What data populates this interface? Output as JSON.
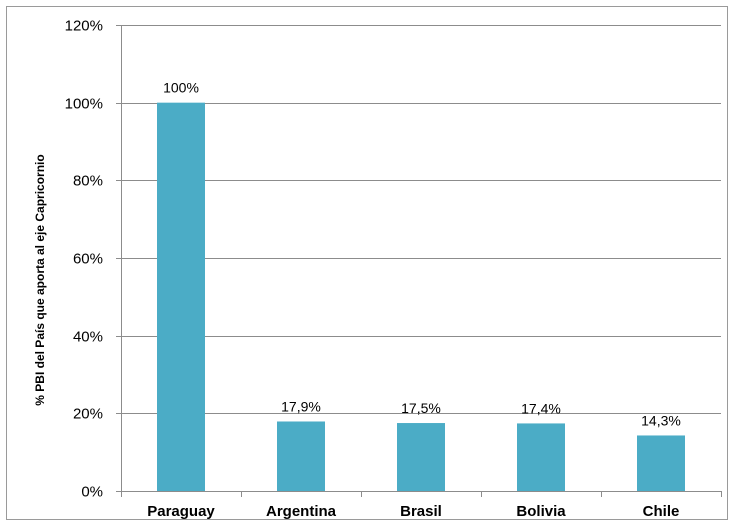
{
  "chart_data": {
    "type": "bar",
    "title": "",
    "xlabel": "",
    "ylabel": "% PBI del País que aporta al eje Capricornio",
    "categories": [
      "Paraguay",
      "Argentina",
      "Brasil",
      "Bolivia",
      "Chile"
    ],
    "values": [
      100,
      17.9,
      17.5,
      17.4,
      14.3
    ],
    "data_labels": [
      "100%",
      "17,9%",
      "17,5%",
      "17,4%",
      "14,3%"
    ],
    "ylim": [
      0,
      120
    ],
    "yticks": [
      0,
      20,
      40,
      60,
      80,
      100,
      120
    ],
    "ytick_labels": [
      "0%",
      "20%",
      "40%",
      "60%",
      "80%",
      "100%",
      "120%"
    ],
    "grid": true,
    "legend": "none",
    "bar_color": "#4BACC6",
    "grid_color": "#8c8c8c"
  }
}
